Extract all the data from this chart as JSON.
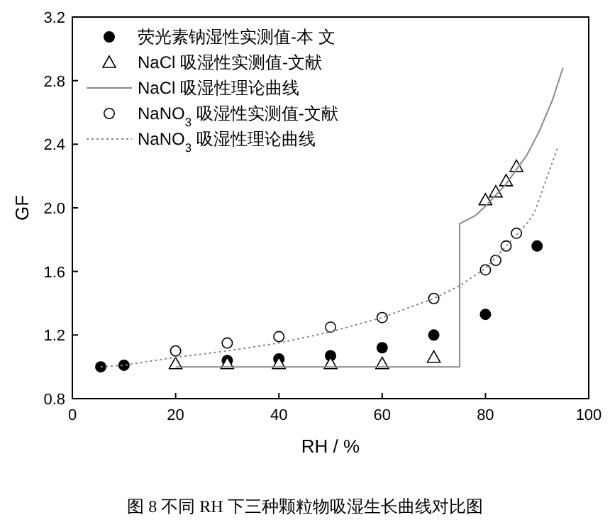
{
  "chart_data": {
    "type": "scatter",
    "xlabel": "RH / %",
    "ylabel": "GF",
    "xlim": [
      0,
      100
    ],
    "xticks": [
      0,
      20,
      40,
      60,
      80,
      100
    ],
    "ylim": [
      0.8,
      3.2
    ],
    "yticks": [
      {
        "value": 0.8,
        "label": "0.8"
      },
      {
        "value": 1.2,
        "label": "1.2"
      },
      {
        "value": 1.6,
        "label": "1.6"
      },
      {
        "value": 2.0,
        "label": "2.0"
      },
      {
        "value": 2.4,
        "label": "2.4"
      },
      {
        "value": 2.8,
        "label": "2.8"
      },
      {
        "value": 3.2,
        "label": "3.2"
      }
    ],
    "grid": false,
    "legend": "top left",
    "annotations": [
      "图 8 不同 RH 下三种颗粒物吸湿生长曲线对比图"
    ],
    "series": [
      {
        "name": "荧光素钠湿性实测值-本 文",
        "marker": "circle",
        "color": "#000000",
        "x": [
          5.5,
          10,
          30,
          40,
          50,
          60,
          70,
          80,
          90
        ],
        "values": [
          1.0,
          1.01,
          1.04,
          1.05,
          1.07,
          1.12,
          1.2,
          1.33,
          1.76
        ]
      },
      {
        "name": "NaCl 吸湿性实测值-文献",
        "marker": "triangle",
        "color": "#ffffff",
        "x": [
          20,
          30,
          40,
          50,
          60,
          70,
          80,
          82,
          84,
          86
        ],
        "values": [
          1.02,
          1.02,
          1.02,
          1.02,
          1.02,
          1.06,
          2.05,
          2.1,
          2.17,
          2.26
        ]
      },
      {
        "name": "NaCl 吸湿性理论曲线",
        "type": "line",
        "line_style": "solid",
        "color": "#888888",
        "x": [
          20,
          75,
          75,
          78,
          80,
          84,
          88,
          90.4,
          93,
          95
        ],
        "values": [
          1.0,
          1.0,
          1.9,
          1.95,
          2.01,
          2.15,
          2.33,
          2.48,
          2.68,
          2.88
        ]
      },
      {
        "name": "NaNO$_{3}$ 吸湿性实测值-文献",
        "marker": "circle",
        "color": "#ffffff",
        "x": [
          20,
          30,
          40,
          50,
          60,
          70,
          80,
          82,
          84,
          86
        ],
        "values": [
          1.1,
          1.15,
          1.19,
          1.25,
          1.31,
          1.43,
          1.61,
          1.67,
          1.76,
          1.84
        ]
      },
      {
        "name": "NaNO$_{3}$ 吸湿性理论曲线",
        "type": "line",
        "line_style": "dotted",
        "color": "#888888",
        "x": [
          5.5,
          10,
          20,
          30,
          40,
          50,
          60,
          70,
          75,
          80,
          84,
          88,
          89.5,
          92,
          94
        ],
        "values": [
          1.0,
          1.01,
          1.06,
          1.1,
          1.15,
          1.22,
          1.31,
          1.43,
          1.51,
          1.62,
          1.76,
          1.9,
          1.97,
          2.2,
          2.38
        ]
      }
    ]
  }
}
